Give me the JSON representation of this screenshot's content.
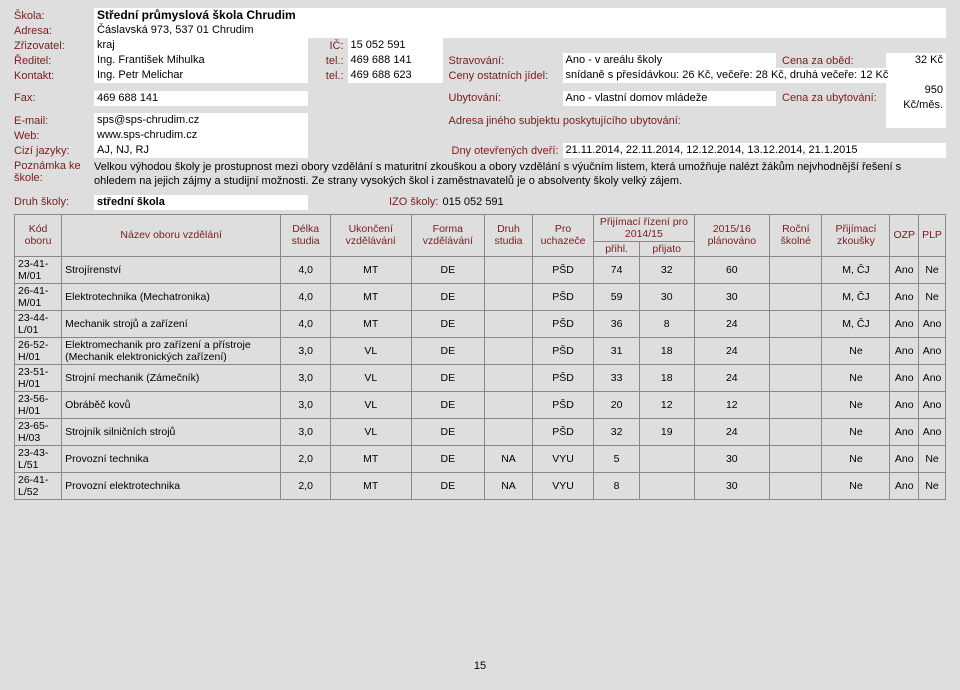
{
  "labels": {
    "school": "Škola:",
    "address": "Adresa:",
    "founder": "Zřizovatel:",
    "director": "Ředitel:",
    "contact": "Kontakt:",
    "fax": "Fax:",
    "email": "E-mail:",
    "web": "Web:",
    "languages": "Cizí jazyky:",
    "note": "Poznámka ke škole:",
    "schoolType": "Druh školy:",
    "ic": "IČ:",
    "tel": "tel.:",
    "boarding": "Stravování:",
    "lunchPrice": "Cena za oběd:",
    "otherMeals": "Ceny ostatních jídel:",
    "accommodation": "Ubytování:",
    "accommPrice": "Cena za ubytování:",
    "accommAddr": "Adresa jiného subjektu poskytujícího ubytování:",
    "openDays": "Dny otevřených dveří:",
    "izo": "IZO školy:"
  },
  "info": {
    "school": "Střední průmyslová škola Chrudim",
    "address": "Čáslavská 973, 537 01 Chrudim",
    "founder": "kraj",
    "director": "Ing. František Mihulka",
    "contact": "Ing. Petr Melichar",
    "fax": "469 688 141",
    "email": "sps@sps-chrudim.cz",
    "web": "www.sps-chrudim.cz",
    "languages": "AJ, NJ, RJ",
    "ic": "15 052 591",
    "directorTel": "469 688 141",
    "contactTel": "469 688 623",
    "boarding": "Ano - v areálu školy",
    "lunchPrice": "32 Kč",
    "otherMeals": "snídaně s přesídávkou: 26 Kč, večeře: 28 Kč, druhá večeře: 12 Kč",
    "accommodation": "Ano - vlastní domov mládeže",
    "accommPrice": "950 Kč/měs.",
    "accommAddr": "",
    "openDays": "21.11.2014, 22.11.2014, 12.12.2014, 13.12.2014, 21.1.2015",
    "note": "Velkou výhodou školy je prostupnost mezi obory vzdělání s maturitní zkouškou a obory vzdělání s výučním listem, která umožňuje nalézt žákům nejvhodnější řešení s ohledem na jejich zájmy a studijní možnosti. Ze strany vysokých škol i zaměstnavatelů je o absolventy školy velký zájem.",
    "schoolType": "střední škola",
    "izo": "015 052 591"
  },
  "table": {
    "headers": {
      "code": "Kód oboru",
      "name": "Název oboru vzdělání",
      "length": "Délka studia",
      "completion": "Ukončení vzdělávání",
      "form": "Forma vzdělávání",
      "kind": "Druh studia",
      "for": "Pro uchazeče",
      "admissionGroup": "Přijímací řízení pro 2014/15",
      "applied": "přihl.",
      "accepted": "přijato",
      "planned": "2015/16 plánováno",
      "tuition": "Roční školné",
      "exams": "Přijímací zkoušky",
      "ozp": "OZP",
      "plp": "PLP"
    },
    "rows": [
      {
        "code": "23-41-M/01",
        "name": "Strojírenství",
        "length": "4,0",
        "completion": "MT",
        "form": "DE",
        "kind": "",
        "for": "PŠD",
        "applied": "74",
        "accepted": "32",
        "planned": "60",
        "tuition": "",
        "exams": "M, ČJ",
        "ozp": "Ano",
        "plp": "Ne"
      },
      {
        "code": "26-41-M/01",
        "name": "Elektrotechnika (Mechatronika)",
        "length": "4,0",
        "completion": "MT",
        "form": "DE",
        "kind": "",
        "for": "PŠD",
        "applied": "59",
        "accepted": "30",
        "planned": "30",
        "tuition": "",
        "exams": "M, ČJ",
        "ozp": "Ano",
        "plp": "Ne"
      },
      {
        "code": "23-44-L/01",
        "name": "Mechanik strojů a zařízení",
        "length": "4,0",
        "completion": "MT",
        "form": "DE",
        "kind": "",
        "for": "PŠD",
        "applied": "36",
        "accepted": "8",
        "planned": "24",
        "tuition": "",
        "exams": "M, ČJ",
        "ozp": "Ano",
        "plp": "Ano"
      },
      {
        "code": "26-52-H/01",
        "name": "Elektromechanik pro zařízení a přístroje (Mechanik elektronických zařízení)",
        "length": "3,0",
        "completion": "VL",
        "form": "DE",
        "kind": "",
        "for": "PŠD",
        "applied": "31",
        "accepted": "18",
        "planned": "24",
        "tuition": "",
        "exams": "Ne",
        "ozp": "Ano",
        "plp": "Ano"
      },
      {
        "code": "23-51-H/01",
        "name": "Strojní mechanik (Zámečník)",
        "length": "3,0",
        "completion": "VL",
        "form": "DE",
        "kind": "",
        "for": "PŠD",
        "applied": "33",
        "accepted": "18",
        "planned": "24",
        "tuition": "",
        "exams": "Ne",
        "ozp": "Ano",
        "plp": "Ano"
      },
      {
        "code": "23-56-H/01",
        "name": "Obráběč kovů",
        "length": "3,0",
        "completion": "VL",
        "form": "DE",
        "kind": "",
        "for": "PŠD",
        "applied": "20",
        "accepted": "12",
        "planned": "12",
        "tuition": "",
        "exams": "Ne",
        "ozp": "Ano",
        "plp": "Ano"
      },
      {
        "code": "23-65-H/03",
        "name": "Strojník silničních strojů",
        "length": "3,0",
        "completion": "VL",
        "form": "DE",
        "kind": "",
        "for": "PŠD",
        "applied": "32",
        "accepted": "19",
        "planned": "24",
        "tuition": "",
        "exams": "Ne",
        "ozp": "Ano",
        "plp": "Ano"
      },
      {
        "code": "23-43-L/51",
        "name": "Provozní technika",
        "length": "2,0",
        "completion": "MT",
        "form": "DE",
        "kind": "NA",
        "for": "VYU",
        "applied": "5",
        "accepted": "",
        "planned": "30",
        "tuition": "",
        "exams": "Ne",
        "ozp": "Ano",
        "plp": "Ne"
      },
      {
        "code": "26-41-L/52",
        "name": "Provozní elektrotechnika",
        "length": "2,0",
        "completion": "MT",
        "form": "DE",
        "kind": "NA",
        "for": "VYU",
        "applied": "8",
        "accepted": "",
        "planned": "30",
        "tuition": "",
        "exams": "Ne",
        "ozp": "Ano",
        "plp": "Ne"
      }
    ]
  },
  "pageNumber": "15",
  "style": {
    "background": "#dedede",
    "labelColor": "#7a1c1c",
    "boxBg": "#ffffff",
    "borderColor": "#888888",
    "baseFont": 11
  }
}
